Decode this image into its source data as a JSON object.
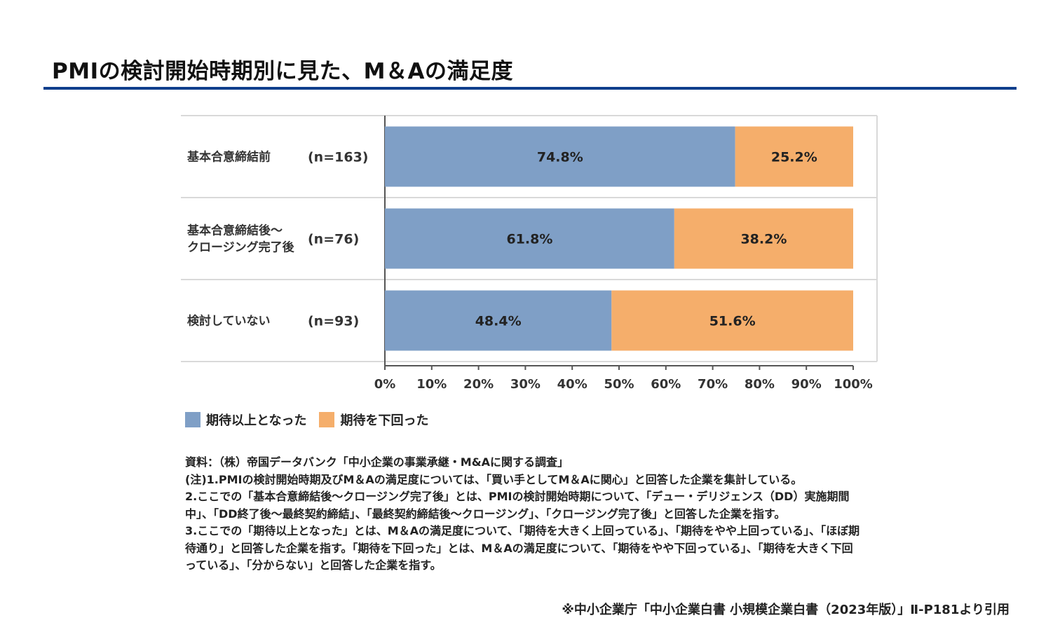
{
  "title": "PMIの検討開始時期別に見た、M＆Aの満足度",
  "colors": {
    "accent": "#0f3f8c",
    "series1": "#7f9fc6",
    "series2": "#f5ae6b",
    "grid": "#d9d9d9",
    "axis": "#555555"
  },
  "chart_data": {
    "type": "bar",
    "orientation": "horizontal",
    "stacked": true,
    "categories": [
      {
        "lines": [
          "基本合意締結前"
        ],
        "n": "(n=163)"
      },
      {
        "lines": [
          "基本合意締結後～",
          "クロージング完了後"
        ],
        "n": "(n=76)"
      },
      {
        "lines": [
          "検討していない"
        ],
        "n": "(n=93)"
      }
    ],
    "series": [
      {
        "name": "期待以上となった",
        "values": [
          74.8,
          61.8,
          48.4
        ],
        "labels": [
          "74.8%",
          "61.8%",
          "48.4%"
        ]
      },
      {
        "name": "期待を下回った",
        "values": [
          25.2,
          38.2,
          51.6
        ],
        "labels": [
          "25.2%",
          "38.2%",
          "51.6%"
        ]
      }
    ],
    "xlim": [
      0,
      100
    ],
    "xticks": [
      "0%",
      "10%",
      "20%",
      "30%",
      "40%",
      "50%",
      "60%",
      "70%",
      "80%",
      "90%",
      "100%"
    ],
    "legend": [
      "期待以上となった",
      "期待を下回った"
    ],
    "legend_position": "bottom-left"
  },
  "notes": [
    "資料：（株）帝国データバンク「中小企業の事業承継・M&Aに関する調査」",
    "(注)1.PMIの検討開始時期及びM＆Aの満足度については、「買い手としてM＆Aに関心」と回答した企業を集計している。",
    "2.ここでの「基本合意締結後～クロージング完了後」とは、PMIの検討開始時期について、「デュー・デリジェンス（DD）実施期間",
    "中」、「DD終了後～最終契約締結」、「最終契約締結後～クロージング」、「クロージング完了後」と回答した企業を指す。",
    "3.ここでの「期待以上となった」とは、M＆Aの満足度について、「期待を大きく上回っている」、「期待をやや上回っている」、「ほぼ期",
    "待通り」と回答した企業を指す。「期待を下回った」とは、M＆Aの満足度について、「期待をやや下回っている」、「期待を大きく下回",
    "っている」、「分からない」と回答した企業を指す。"
  ],
  "source": "※中小企業庁「中小企業白書 小規模企業白書（2023年版）」Ⅱ-P181より引用"
}
